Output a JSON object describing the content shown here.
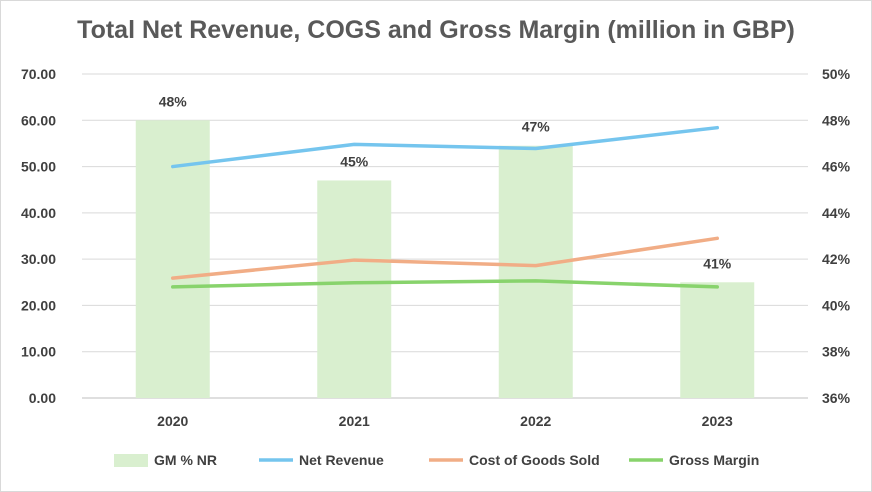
{
  "chart_data": {
    "type": "bar",
    "title": "Total Net Revenue, COGS and Gross Margin (million in GBP)",
    "categories": [
      "2020",
      "2021",
      "2022",
      "2023"
    ],
    "y_left": {
      "ylim": [
        0,
        70
      ],
      "ticks": [
        0,
        10,
        20,
        30,
        40,
        50,
        60,
        70
      ],
      "tick_labels": [
        "0.00",
        "10.00",
        "20.00",
        "30.00",
        "40.00",
        "50.00",
        "60.00",
        "70.00"
      ]
    },
    "y_right": {
      "ylim": [
        36,
        50
      ],
      "ticks": [
        36,
        38,
        40,
        42,
        44,
        46,
        48,
        50
      ],
      "tick_labels": [
        "36%",
        "38%",
        "40%",
        "42%",
        "44%",
        "46%",
        "48%",
        "50%"
      ]
    },
    "grid": true,
    "legend_position": "bottom",
    "series": [
      {
        "name": "GM % NR",
        "type": "bar",
        "axis": "right",
        "color": "#d9efcf",
        "values": [
          48,
          45.4,
          46.9,
          41.0
        ],
        "data_labels": [
          "48%",
          "45%",
          "47%",
          "41%"
        ]
      },
      {
        "name": "Net Revenue",
        "type": "line",
        "axis": "left",
        "color": "#75c5ee",
        "values": [
          50.0,
          54.8,
          53.9,
          58.4
        ]
      },
      {
        "name": "Cost of Goods Sold",
        "type": "line",
        "axis": "left",
        "color": "#f1ad86",
        "values": [
          25.9,
          29.8,
          28.6,
          34.5
        ]
      },
      {
        "name": "Gross Margin",
        "type": "line",
        "axis": "left",
        "color": "#88d36c",
        "values": [
          24.0,
          24.9,
          25.3,
          24.0
        ]
      }
    ]
  }
}
